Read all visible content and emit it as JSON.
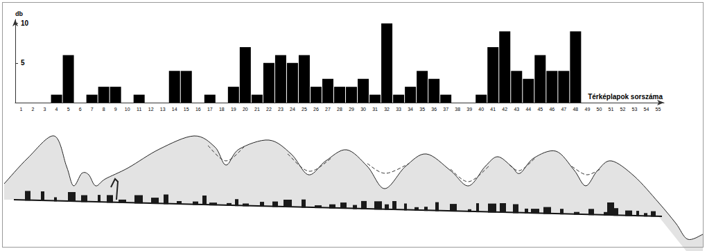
{
  "chart_data": {
    "type": "bar",
    "categories": [
      "1",
      "2",
      "3",
      "4",
      "5",
      "6",
      "7",
      "8",
      "9",
      "10",
      "11",
      "12",
      "13",
      "14",
      "15",
      "16",
      "17",
      "18",
      "19",
      "20",
      "21",
      "22",
      "23",
      "24",
      "25",
      "26",
      "27",
      "28",
      "29",
      "30",
      "31",
      "32",
      "33",
      "34",
      "35",
      "36",
      "37",
      "38",
      "39",
      "40",
      "41",
      "42",
      "43",
      "44",
      "45",
      "46",
      "47",
      "48",
      "49",
      "50",
      "51",
      "52",
      "53",
      "54",
      "55"
    ],
    "values": [
      0,
      0,
      0,
      1,
      6,
      0,
      1,
      2,
      2,
      0,
      1,
      0,
      0,
      4,
      4,
      0,
      1,
      0,
      2,
      7,
      1,
      5,
      6,
      5,
      6,
      2,
      3,
      2,
      2,
      3,
      1,
      10,
      1,
      2,
      4,
      3,
      1,
      0,
      0,
      1,
      7,
      9,
      4,
      3,
      6,
      4,
      4,
      9,
      0,
      0,
      0,
      0,
      0,
      0,
      0
    ],
    "color": "#000000",
    "y_label": "db",
    "x_label": "Térképlapok sorszáma",
    "ylim": [
      0,
      10.5
    ],
    "yticks": [
      5,
      10
    ],
    "grid": false
  }
}
